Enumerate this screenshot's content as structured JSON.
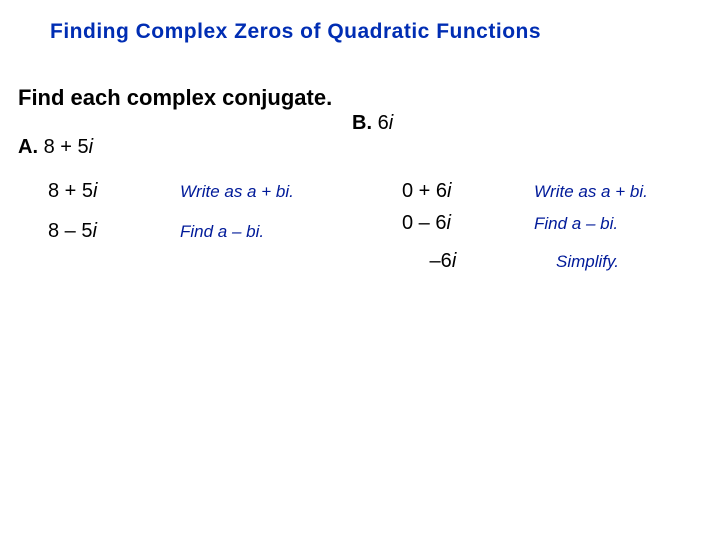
{
  "title": {
    "text": "Finding Complex Zeros of Quadratic Functions",
    "color": "#002db3",
    "fontsize": 21
  },
  "prompt": {
    "text": "Find each complex conjugate.",
    "fontsize": 22
  },
  "body": {
    "black": "#000000",
    "blue": "#001a99",
    "fontsize": 20,
    "explain_fontsize": 17
  },
  "partA": {
    "label_letter": "A.",
    "label_expr": "8 + 5",
    "label_i": "i",
    "rows": [
      {
        "expr": "8 + 5",
        "i": "i",
        "explain": "Write as a + bi."
      },
      {
        "expr": "8 – 5",
        "i": "i",
        "explain": "Find a – bi."
      }
    ]
  },
  "partB": {
    "label_letter": "B.",
    "label_expr": "6",
    "label_i": "i",
    "rows": [
      {
        "expr": "0 + 6",
        "i": "i",
        "explain": "Write as a + bi."
      },
      {
        "expr": "0 – 6",
        "i": "i",
        "explain": "Find a – bi."
      },
      {
        "expr": " –6",
        "i": "i",
        "explain": "Simplify."
      }
    ]
  }
}
